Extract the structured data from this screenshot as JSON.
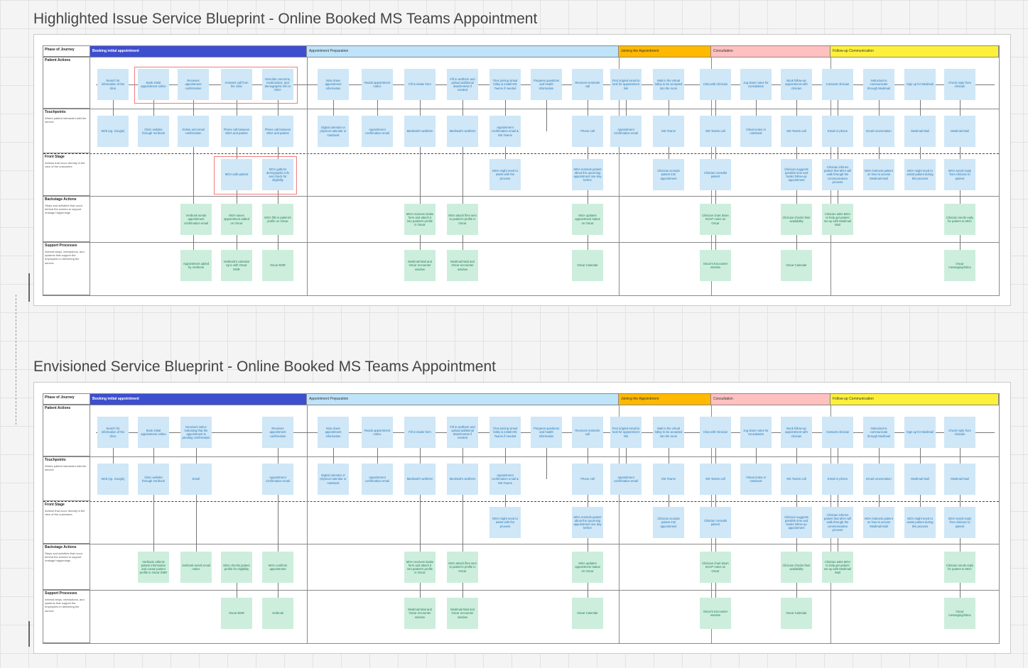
{
  "titles": {
    "highlighted": "Highlighted Issue Service Blueprint - Online Booked MS Teams Appointment",
    "envisioned": "Envisioned Service Blueprint - Online Booked MS Teams Appointment"
  },
  "row_labels": [
    {
      "title": "Phase of Journey",
      "desc": ""
    },
    {
      "title": "Patient Actions",
      "desc": ""
    },
    {
      "title": "Touchpoints",
      "desc": "Where patient interacted with the service"
    },
    {
      "title": "Front Stage",
      "desc": "Actions that occur directly in the view of the customers"
    },
    {
      "title": "Backstage Actions",
      "desc": "Steps and activities that occur behind the scenes to support onstage happenings"
    },
    {
      "title": "Support Processes",
      "desc": "Internal steps, interactions, and systems that support the employees in delivering the service"
    }
  ],
  "phases": [
    {
      "label": "Booking initial appointment",
      "color": "#3d4ecf"
    },
    {
      "label": "Appointment Preparation",
      "color": "#bfe3f9"
    },
    {
      "label": "Joining the Appointment",
      "color": "#ffb900"
    },
    {
      "label": "Consultation",
      "color": "#ffc0c0"
    },
    {
      "label": "Follow-up Communication",
      "color": "#fdf03a"
    }
  ],
  "highlighted": {
    "patient": [
      "Search for information of the clinic",
      "Book initial appointment online",
      "Receives appointment confirmation",
      "Answers call from the clinic",
      "Describe concerns, medications, and demographic info to MOA",
      "Note down appointment information",
      "Reads appointment notice",
      "Fill in intake form",
      "Fill in webform and upload additional attachments if needed",
      "Tries joining virtual lobby & install MS Teams if needed",
      "Prepares questions and health information",
      "Receives reminder call",
      "Find original email to look for appointment link",
      "Wait in the virtual lobby to be accepted into the room",
      "Chat with Clinician",
      "Jog down notes for consultation",
      "Book follow-up appointment with clinician",
      "Contacts clinician",
      "Instructed to communicate through Medimail",
      "Sign up for Medimail",
      "Check reply from clinician"
    ],
    "touch": [
      "Web (eg. Google)",
      "Clinic website through Veribook",
      "Online and email confirmation",
      "Phone call between MOA and patient",
      "Phone call between MOA and patient",
      "Digital calendar or physical calendar or notebook",
      "Appointment confirmation email",
      "Medimail's webform",
      "Medimail's webform",
      "Appointment confirmation email & MS Teams",
      "Phone call",
      "Appointment confirmation email",
      "MS Teams",
      "MS Teams call",
      "Virtual notes or notebook",
      "MS Teams call",
      "Email or phone",
      "Email conversation",
      "Medimail Mail",
      "Medimail Mail"
    ],
    "front": [
      "MOA calls patient",
      "MOA gathers demographic info and check for eligibility",
      "MOA might need to assist with the process",
      "MOA reminds patient about the upcoming appointment one day before",
      "Clinician accepts patient into appointment",
      "Clinician consults patient",
      "Clinician suggests possible time and books follow-up appointment",
      "Clinician informs patient that MOA will walk through the communication process",
      "MOA instructs patient on how to access Medimail Mail",
      "MOA might need to assist patient during this process",
      "MOA sends reply from clinician to patient"
    ],
    "back": [
      "Veribook sends appointment confirmation email",
      "MOA saves appointment added on Oscar",
      "MOA fills in patient's profile on Oscar",
      "MOA receives intake form and attach it into patient's profile in Oscar",
      "MOA attach files sent to patient's profile in Oscar",
      "MOA updates appointment status on Oscar",
      "Clinician chart down SOAP notes on Oscar",
      "Clinician checks their availability",
      "Clinician asks MOA to help get patient set up with Medimail Mail",
      "Clinician sends reply for patient to MOA"
    ],
    "support": [
      "Appointment added by Veribook",
      "Veribook's calendar sync with Oscar EMR",
      "Oscar EMR",
      "Medimail Mail and Oscar encounter window",
      "Medimail Mail and Oscar encounter window",
      "Oscar Calendar",
      "Oscar's Encounter window",
      "Oscar Calendar",
      "Oscar messaging/inbox"
    ]
  },
  "envisioned": {
    "patient": [
      "Search for information of the clinic",
      "Book initial appointment online",
      "Receives notice indicating that the appointment is pending confirmation",
      "Receives appointment confirmation",
      "Note down appointment information",
      "Reads appointment notice",
      "Fill in intake form",
      "Fill in webform and upload additional attachments if needed",
      "Tries joining virtual lobby & install MS Teams if needed",
      "Prepares questions and health information",
      "Receives reminder call",
      "Find original email to look for appointment link",
      "Wait in the virtual lobby to be accepted into the room",
      "Chat with Clinician",
      "Jog down notes for consultation",
      "Book follow-up appointment with clinician",
      "Contacts clinician",
      "Instructed to communicate through Medimail",
      "Sign up for Medimail",
      "Check reply from clinician"
    ],
    "touch": [
      "Web (eg. Google)",
      "Clinic website through Veribook",
      "Email",
      "Appointment confirmation email",
      "Digital calendar or physical calendar or notebook",
      "Appointment confirmation email",
      "Medimail's webform",
      "Medimail's webform",
      "Appointment confirmation email & MS Teams",
      "Phone call",
      "Appointment confirmation email",
      "MS Teams",
      "MS Teams call",
      "Virtual notes or notebook",
      "MS Teams call",
      "Email or phone",
      "Email conversation",
      "Medimail Mail",
      "Medimail Mail"
    ],
    "front": [
      "MOA might need to assist with the process",
      "MOA reminds patient about the upcoming appointment one day before",
      "Clinician accepts patient into appointment",
      "Clinician consults patient",
      "Clinician suggests possible time and books follow-up appointment",
      "Clinician informs patient that MOA will walk through the communication process",
      "MOA instructs patient on how to access Medimail Mail",
      "MOA might need to assist patient during this process",
      "MOA sends reply from clinician to patient"
    ],
    "back": [
      "Veribook collects patient information and create patient profile in Oscar EMR",
      "Veribook sends email notice",
      "MOA checks patient profile for eligibility",
      "MOA confirms appointment",
      "MOA receives intake form and attach it into patient's profile in Oscar",
      "MOA attach files sent to patient's profile in Oscar",
      "MOA updates appointment status on Oscar",
      "Clinician chart down SOAP notes on Oscar",
      "Clinician checks their availability",
      "Clinician asks MOA to help get patient set up with Medimail Mail",
      "Clinician sends reply for patient to MOA"
    ],
    "support": [
      "Oscar EMR",
      "Veribook",
      "Medimail Mail and Oscar encounter window",
      "Medimail Mail and Oscar encounter window",
      "Oscar Calendar",
      "Oscar's Encounter window",
      "Oscar Calendar",
      "Oscar messaging/inbox"
    ]
  }
}
